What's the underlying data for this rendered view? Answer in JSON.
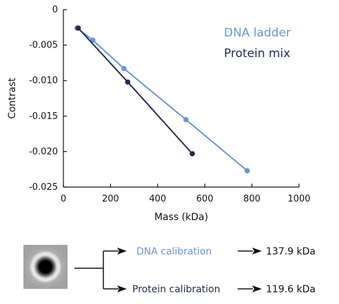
{
  "chart_data": {
    "type": "line",
    "xlabel": "Mass (kDa)",
    "ylabel": "Contrast",
    "xlim": [
      0,
      1000
    ],
    "ylim": [
      -0.025,
      0
    ],
    "xticks": [
      0,
      200,
      400,
      600,
      800,
      1000
    ],
    "xtick_labels": [
      "0",
      "200",
      "400",
      "600",
      "800",
      "1000"
    ],
    "yticks": [
      0,
      -0.005,
      -0.01,
      -0.015,
      -0.02,
      -0.025
    ],
    "ytick_labels": [
      "0",
      "-0.005",
      "-0.010",
      "-0.015",
      "-0.020",
      "-0.025"
    ],
    "grid": false,
    "legend_position": "top-right",
    "series": [
      {
        "name": "DNA ladder",
        "color": "#6b95cc",
        "x": [
          58,
          125,
          257,
          520,
          780
        ],
        "y": [
          -0.0026,
          -0.0043,
          -0.0083,
          -0.0155,
          -0.0227
        ]
      },
      {
        "name": "Protein mix",
        "color": "#262a4d",
        "x": [
          63,
          273,
          547
        ],
        "y": [
          -0.0026,
          -0.0102,
          -0.0203
        ]
      }
    ]
  },
  "flow": {
    "dna_label": "DNA calibration",
    "dna_result": "137.9 kDa",
    "protein_label": "Protein calibration",
    "protein_result": "119.6 kDa",
    "dna_color": "#6b95cc",
    "protein_color": "#262a4d",
    "thumbnail": "particle-image"
  }
}
